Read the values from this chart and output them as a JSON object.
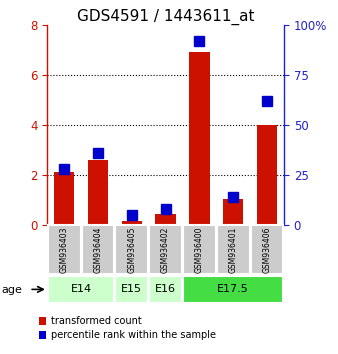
{
  "title": "GDS4591 / 1443611_at",
  "samples": [
    "GSM936403",
    "GSM936404",
    "GSM936405",
    "GSM936402",
    "GSM936400",
    "GSM936401",
    "GSM936406"
  ],
  "transformed_count": [
    2.1,
    2.6,
    0.15,
    0.45,
    6.9,
    1.05,
    4.0
  ],
  "percentile_rank": [
    28,
    36,
    5,
    8,
    92,
    14,
    62
  ],
  "age_groups": [
    {
      "label": "E14",
      "samples": [
        "GSM936403",
        "GSM936404"
      ],
      "color": "#ccffcc"
    },
    {
      "label": "E15",
      "samples": [
        "GSM936405"
      ],
      "color": "#ccffcc"
    },
    {
      "label": "E16",
      "samples": [
        "GSM936402"
      ],
      "color": "#ccffcc"
    },
    {
      "label": "E17.5",
      "samples": [
        "GSM936400",
        "GSM936401",
        "GSM936406"
      ],
      "color": "#44dd44"
    }
  ],
  "ylim_left": [
    0,
    8
  ],
  "ylim_right": [
    0,
    100
  ],
  "yticks_left": [
    0,
    2,
    4,
    6,
    8
  ],
  "yticks_right": [
    0,
    25,
    50,
    75,
    100
  ],
  "ytick_labels_right": [
    "0",
    "25",
    "50",
    "75",
    "100%"
  ],
  "bar_color_red": "#cc1100",
  "bar_color_blue": "#0000cc",
  "sample_box_color": "#cccccc",
  "age_label": "age",
  "legend_red": "transformed count",
  "legend_blue": "percentile rank within the sample",
  "grid_color": "black",
  "title_fontsize": 11,
  "axis_label_color_left": "#cc1100",
  "axis_label_color_right": "#2222cc",
  "bar_width": 0.6,
  "blue_marker_size": 7
}
